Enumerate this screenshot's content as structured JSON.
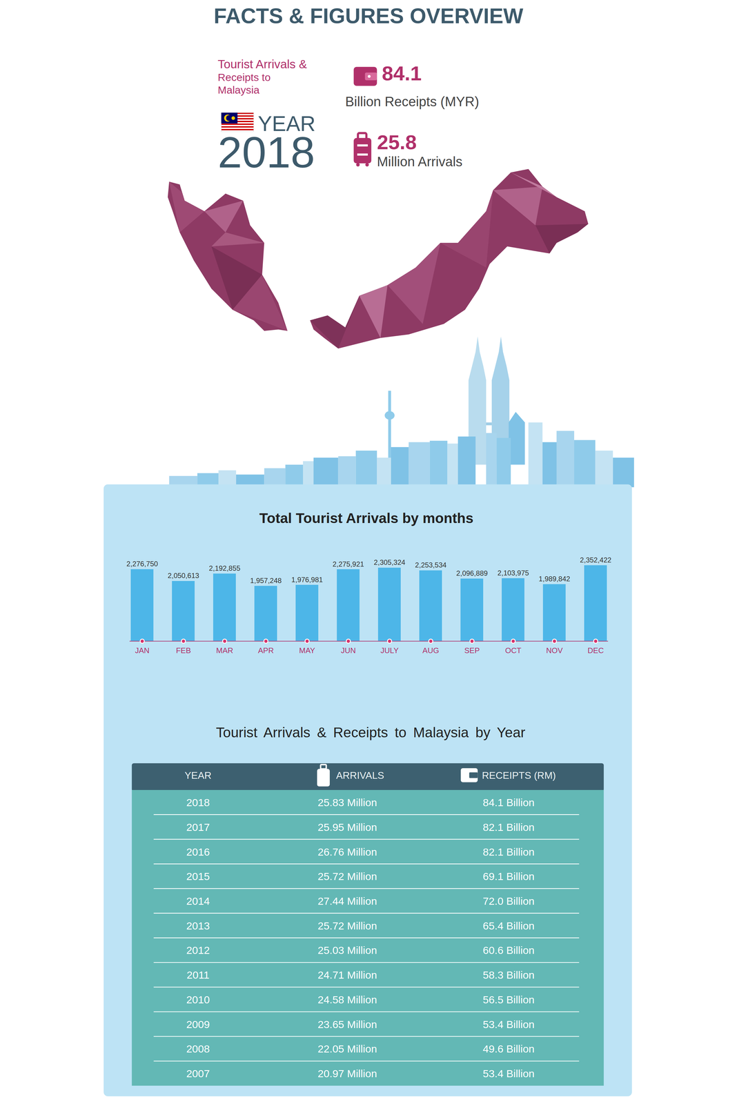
{
  "header": {
    "title": "FACTS & FIGURES OVERVIEW",
    "subtitle": "Tourist Arrivals & Receipts to Malaysia",
    "year_label": "YEAR",
    "year": 2018,
    "stats": [
      {
        "value": 84.1,
        "label": "Billion Receipts (MYR)"
      },
      {
        "value": 25.8,
        "label": "Million Arrivals"
      }
    ]
  },
  "chart_data": {
    "type": "bar",
    "title": "Total Tourist Arrivals by months",
    "categories": [
      "JAN",
      "FEB",
      "MAR",
      "APR",
      "MAY",
      "JUN",
      "JULY",
      "AUG",
      "SEP",
      "OCT",
      "NOV",
      "DEC"
    ],
    "values": [
      2276750,
      2050613,
      2192855,
      1957248,
      1976981,
      2275921,
      2305324,
      2253534,
      2096889,
      2103975,
      1989842,
      2352422
    ],
    "value_labels": [
      "2,276,750",
      "2,050,613",
      "2,192,855",
      "1,957,248",
      "1,976,981",
      "2,275,921",
      "2,305,324",
      "2,253,534",
      "2,096,889",
      "2,103,975",
      "1,989,842",
      "2,352,422"
    ],
    "color": "#4db6e8",
    "ylim": [
      900000,
      2400000
    ],
    "data_labels": true,
    "tick_labels": "x"
  },
  "table": {
    "title": "Tourist Arrivals & Receipts to Malaysia by Year",
    "columns": [
      "YEAR",
      "ARRIVALS",
      "RECEIPTS (RM)"
    ],
    "rows": [
      [
        "2018",
        "25.83 Million",
        "84.1 Billion"
      ],
      [
        "2017",
        "25.95 Million",
        "82.1 Billion"
      ],
      [
        "2016",
        "26.76 Million",
        "82.1 Billion"
      ],
      [
        "2015",
        "25.72 Million",
        "69.1 Billion"
      ],
      [
        "2014",
        "27.44 Million",
        "72.0 Billion"
      ],
      [
        "2013",
        "25.72 Million",
        "65.4 Billion"
      ],
      [
        "2012",
        "25.03 Million",
        "60.6 Billion"
      ],
      [
        "2011",
        "24.71 Million",
        "58.3 Billion"
      ],
      [
        "2010",
        "24.58 Million",
        "56.5 Billion"
      ],
      [
        "2009",
        "23.65 Million",
        "53.4 Billion"
      ],
      [
        "2008",
        "22.05 Million",
        "49.6 Billion"
      ],
      [
        "2007",
        "20.97 Million",
        "53.4 Billion"
      ]
    ]
  }
}
